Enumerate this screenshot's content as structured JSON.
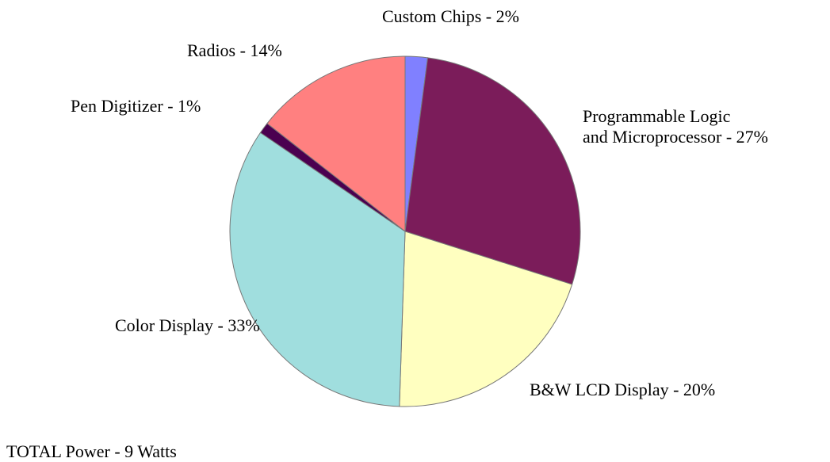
{
  "chart_data": {
    "type": "pie",
    "categories": [
      "Custom Chips - 2%",
      "Programmable Logic\nand Microprocessor - 27%",
      "B&W LCD Display - 20%",
      "Color Display - 33%",
      "Pen Digitizer - 1%",
      "Radios - 14%"
    ],
    "values": [
      2,
      27,
      20,
      33,
      1,
      14
    ],
    "colors": [
      "#8080ff",
      "#7b1c5a",
      "#ffffc0",
      "#a0dede",
      "#4b0050",
      "#ff8080"
    ],
    "annotation": "TOTAL Power - 9 Watts"
  }
}
